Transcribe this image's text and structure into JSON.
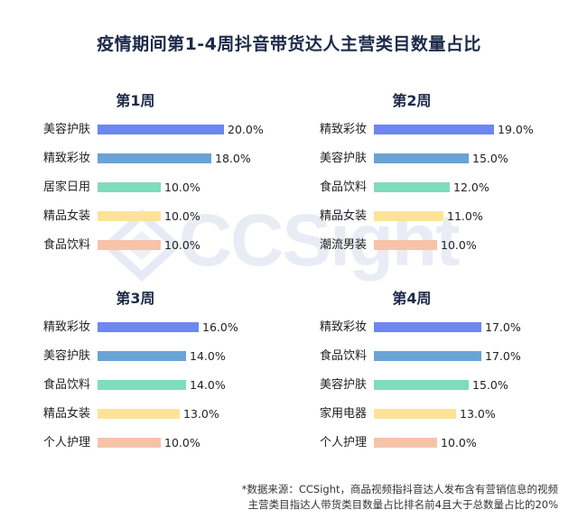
{
  "title": "疫情期间第1-4周抖音带货达人主营类目数量占比",
  "watermark": "CCSight",
  "colors": [
    "#6e86f2",
    "#6aa3d5",
    "#7fdcbc",
    "#fde39a",
    "#f6c3a9"
  ],
  "chart_data": [
    {
      "type": "bar",
      "title": "第1周",
      "categories": [
        "美容护肤",
        "精致彩妆",
        "居家日用",
        "精品女装",
        "食品饮料"
      ],
      "values": [
        20.0,
        18.0,
        10.0,
        10.0,
        10.0
      ],
      "labels": [
        "20.0%",
        "18.0%",
        "10.0%",
        "10.0%",
        "10.0%"
      ]
    },
    {
      "type": "bar",
      "title": "第2周",
      "categories": [
        "精致彩妆",
        "美容护肤",
        "食品饮料",
        "精品女装",
        "潮流男装"
      ],
      "values": [
        19.0,
        15.0,
        12.0,
        11.0,
        10.0
      ],
      "labels": [
        "19.0%",
        "15.0%",
        "12.0%",
        "11.0%",
        "10.0%"
      ]
    },
    {
      "type": "bar",
      "title": "第3周",
      "categories": [
        "精致彩妆",
        "美容护肤",
        "食品饮料",
        "精品女装",
        "个人护理"
      ],
      "values": [
        16.0,
        14.0,
        14.0,
        13.0,
        10.0
      ],
      "labels": [
        "16.0%",
        "14.0%",
        "14.0%",
        "13.0%",
        "10.0%"
      ]
    },
    {
      "type": "bar",
      "title": "第4周",
      "categories": [
        "精致彩妆",
        "食品饮料",
        "美容护肤",
        "家用电器",
        "个人护理"
      ],
      "values": [
        17.0,
        17.0,
        15.0,
        13.0,
        10.0
      ],
      "labels": [
        "17.0%",
        "17.0%",
        "15.0%",
        "13.0%",
        "10.0%"
      ]
    }
  ],
  "footnote": {
    "line1": "*数据来源：CCSight，商品视频指抖音达人发布含有营销信息的视频",
    "line2": "主营类目指达人带货类目数量占比排名前4且大于总数量占比的20%"
  }
}
